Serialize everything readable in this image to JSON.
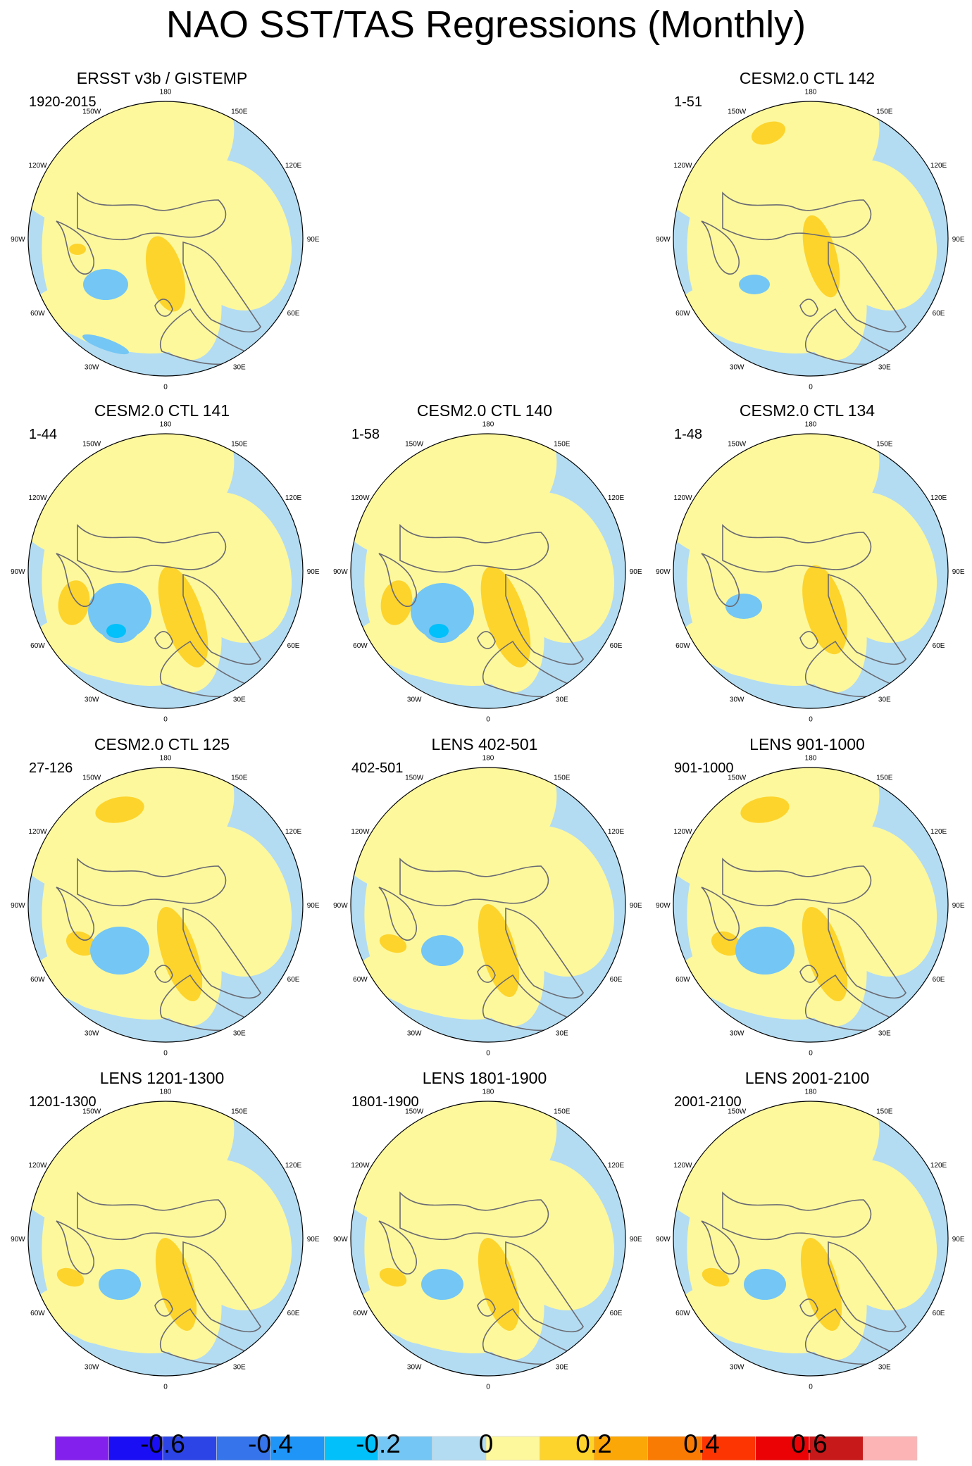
{
  "chart_data": {
    "type": "polar-stereographic-map-grid",
    "title": "NAO SST/TAS Regressions (Monthly)",
    "projection": "North polar stereographic, 180 at top, 0 at bottom",
    "longitude_labels": [
      "180",
      "150E",
      "120E",
      "90E",
      "60E",
      "30E",
      "0",
      "30W",
      "60W",
      "90W",
      "120W",
      "150W"
    ],
    "colorbar": {
      "colors": [
        "#8420ee",
        "#1a0ef5",
        "#2c44e6",
        "#3574ea",
        "#1e95f7",
        "#02c0fa",
        "#74c6f4",
        "#b3dcf2",
        "#fdf89c",
        "#fdd42c",
        "#fba707",
        "#fa7b04",
        "#fd3502",
        "#ea0205",
        "#c8191a",
        "#fdb4b5"
      ],
      "tick_labels": [
        "-0.6",
        "-0.4",
        "-0.2",
        "0",
        "0.2",
        "0.4",
        "0.6"
      ],
      "tick_values": [
        -0.6,
        -0.4,
        -0.2,
        0,
        0.2,
        0.4,
        0.6
      ]
    },
    "panels": [
      {
        "id": "ersst",
        "title": "ERSST v3b / GISTEMP",
        "period": "1920-2015",
        "row": 0,
        "col": 0,
        "pattern": "obs"
      },
      {
        "id": "ctl142",
        "title": "CESM2.0 CTL 142",
        "period": "1-51",
        "row": 0,
        "col": 2,
        "pattern": "ctl142"
      },
      {
        "id": "ctl141",
        "title": "CESM2.0 CTL 141",
        "period": "1-44",
        "row": 1,
        "col": 0,
        "pattern": "strong"
      },
      {
        "id": "ctl140",
        "title": "CESM2.0 CTL 140",
        "period": "1-58",
        "row": 1,
        "col": 1,
        "pattern": "strong"
      },
      {
        "id": "ctl134",
        "title": "CESM2.0 CTL 134",
        "period": "1-48",
        "row": 1,
        "col": 2,
        "pattern": "ctl134"
      },
      {
        "id": "ctl125",
        "title": "CESM2.0 CTL 125",
        "period": "27-126",
        "row": 2,
        "col": 0,
        "pattern": "model"
      },
      {
        "id": "lens402",
        "title": "LENS 402-501",
        "period": "402-501",
        "row": 2,
        "col": 1,
        "pattern": "lens"
      },
      {
        "id": "lens901",
        "title": "LENS 901-1000",
        "period": "901-1000",
        "row": 2,
        "col": 2,
        "pattern": "model"
      },
      {
        "id": "lens1201",
        "title": "LENS 1201-1300",
        "period": "1201-1300",
        "row": 3,
        "col": 0,
        "pattern": "lens"
      },
      {
        "id": "lens1801",
        "title": "LENS 1801-1900",
        "period": "1801-1900",
        "row": 3,
        "col": 1,
        "pattern": "lens"
      },
      {
        "id": "lens2001",
        "title": "LENS 2001-2100",
        "period": "2001-2100",
        "row": 3,
        "col": 2,
        "pattern": "lens"
      }
    ]
  }
}
